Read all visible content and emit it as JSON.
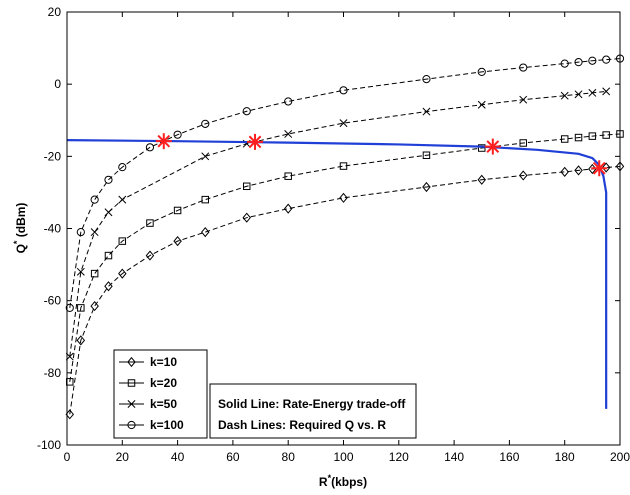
{
  "chart_data": {
    "type": "line",
    "xlabel_main": "R",
    "xlabel_sup": "*",
    "xlabel_rest": "(kbps)",
    "ylabel_main": "Q",
    "ylabel_sup": "*",
    "ylabel_rest": " (dBm)",
    "xlim": [
      0,
      200
    ],
    "ylim": [
      -100,
      20
    ],
    "xticks": [
      0,
      20,
      40,
      60,
      80,
      100,
      120,
      140,
      160,
      180,
      200
    ],
    "yticks": [
      -100,
      -80,
      -60,
      -40,
      -20,
      0,
      20
    ],
    "grid": false,
    "legend_position": "bottom-left",
    "annotation_lines": [
      "Solid Line: Rate-Energy trade-off",
      "Dash Lines: Required Q vs. R"
    ],
    "series": [
      {
        "name": "k=10",
        "marker": "diamond",
        "style": "dashed",
        "color": "#000000",
        "x": [
          1,
          5,
          10,
          15,
          20,
          30,
          40,
          50,
          65,
          80,
          100,
          130,
          150,
          165,
          180,
          185,
          190,
          195,
          200
        ],
        "y": [
          -91.5,
          -71,
          -61.5,
          -56,
          -52.5,
          -47.5,
          -43.5,
          -41,
          -37,
          -34.5,
          -31.5,
          -28.5,
          -26.5,
          -25.3,
          -24.3,
          -23.9,
          -23.5,
          -23.1,
          -22.8
        ]
      },
      {
        "name": "k=20",
        "marker": "square",
        "style": "dashed",
        "color": "#000000",
        "x": [
          1,
          5,
          10,
          15,
          20,
          30,
          40,
          50,
          65,
          80,
          100,
          130,
          150,
          165,
          180,
          185,
          190,
          195,
          200
        ],
        "y": [
          -82.5,
          -62,
          -52.5,
          -47.5,
          -43.5,
          -38.5,
          -35,
          -32,
          -28.3,
          -25.5,
          -22.7,
          -19.7,
          -17.7,
          -16.3,
          -15.2,
          -14.8,
          -14.4,
          -14.1,
          -13.8
        ]
      },
      {
        "name": "k=50",
        "marker": "x",
        "style": "dashed",
        "color": "#000000",
        "x": [
          1,
          5,
          10,
          15,
          20,
          50,
          65,
          80,
          100,
          130,
          150,
          165,
          180,
          185,
          190,
          195
        ],
        "y": [
          -75.5,
          -52,
          -41,
          -35.5,
          -32,
          -20,
          -16.5,
          -13.8,
          -10.8,
          -7.6,
          -5.7,
          -4.3,
          -3.2,
          -2.8,
          -2.4,
          -2
        ]
      },
      {
        "name": "k=100",
        "marker": "circle",
        "style": "dashed",
        "color": "#000000",
        "x": [
          1,
          5,
          10,
          15,
          20,
          30,
          40,
          50,
          65,
          80,
          100,
          130,
          150,
          165,
          180,
          185,
          190,
          195,
          200
        ],
        "y": [
          -62,
          -41,
          -32,
          -26.5,
          -23,
          -17.5,
          -14,
          -11,
          -7.5,
          -4.8,
          -1.7,
          1.4,
          3.4,
          4.6,
          5.7,
          6.1,
          6.5,
          6.8,
          7.1
        ]
      },
      {
        "name": "",
        "style": "solid",
        "color": "#1f3fd6",
        "x": [
          0,
          40,
          80,
          120,
          150,
          170,
          185,
          190,
          192,
          193,
          194,
          195,
          195
        ],
        "y": [
          -15.5,
          -15.8,
          -16.2,
          -16.7,
          -17.3,
          -18.2,
          -19.3,
          -20.5,
          -22,
          -23.5,
          -25.5,
          -30,
          -90
        ]
      }
    ],
    "intersections": {
      "color": "#ff1f1f",
      "points": [
        {
          "x": 35,
          "y": -15.8
        },
        {
          "x": 68,
          "y": -16
        },
        {
          "x": 154,
          "y": -17.3
        },
        {
          "x": 192.5,
          "y": -23.3
        }
      ]
    }
  }
}
